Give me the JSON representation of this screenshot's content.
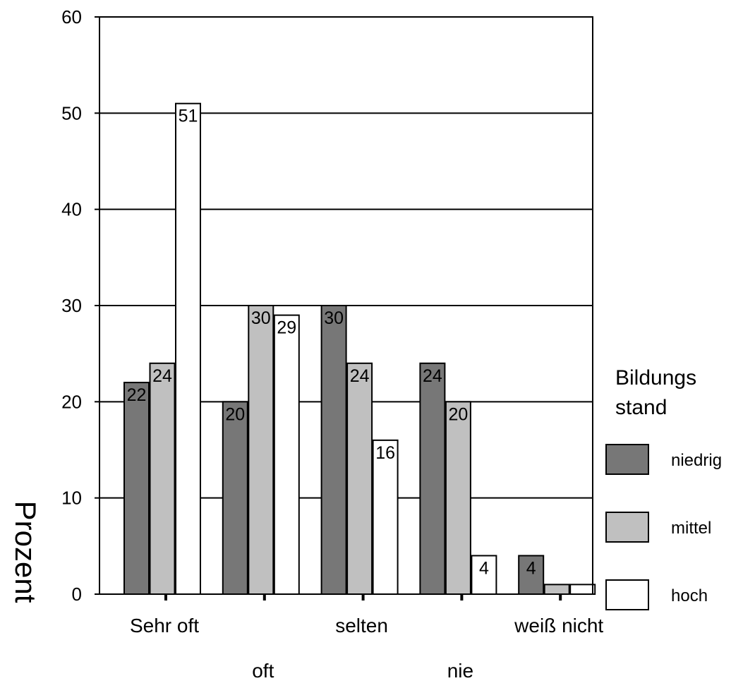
{
  "chart_data": {
    "type": "bar",
    "categories": [
      "Sehr oft",
      "oft",
      "selten",
      "nie",
      "weiß nicht"
    ],
    "series": [
      {
        "name": "niedrig",
        "values": [
          22,
          20,
          30,
          24,
          4
        ],
        "labels": [
          "22",
          "20",
          "30",
          "24",
          "4"
        ],
        "color": "#777777"
      },
      {
        "name": "mittel",
        "values": [
          24,
          30,
          24,
          20,
          1
        ],
        "labels": [
          "24",
          "30",
          "24",
          "20",
          ""
        ],
        "color": "#c0c0c0"
      },
      {
        "name": "hoch",
        "values": [
          51,
          29,
          16,
          4,
          1
        ],
        "labels": [
          "51",
          "29",
          "16",
          "4",
          ""
        ],
        "color": "#ffffff"
      }
    ],
    "title": "",
    "xlabel": "",
    "ylabel": "Prozent",
    "ylim": [
      0,
      60
    ],
    "yticks": [
      0,
      10,
      20,
      30,
      40,
      50,
      60
    ],
    "grid": true,
    "legend": {
      "title": "Bildungs\nstand",
      "title_lines": [
        "Bildungs",
        "stand"
      ],
      "position": "right"
    }
  }
}
